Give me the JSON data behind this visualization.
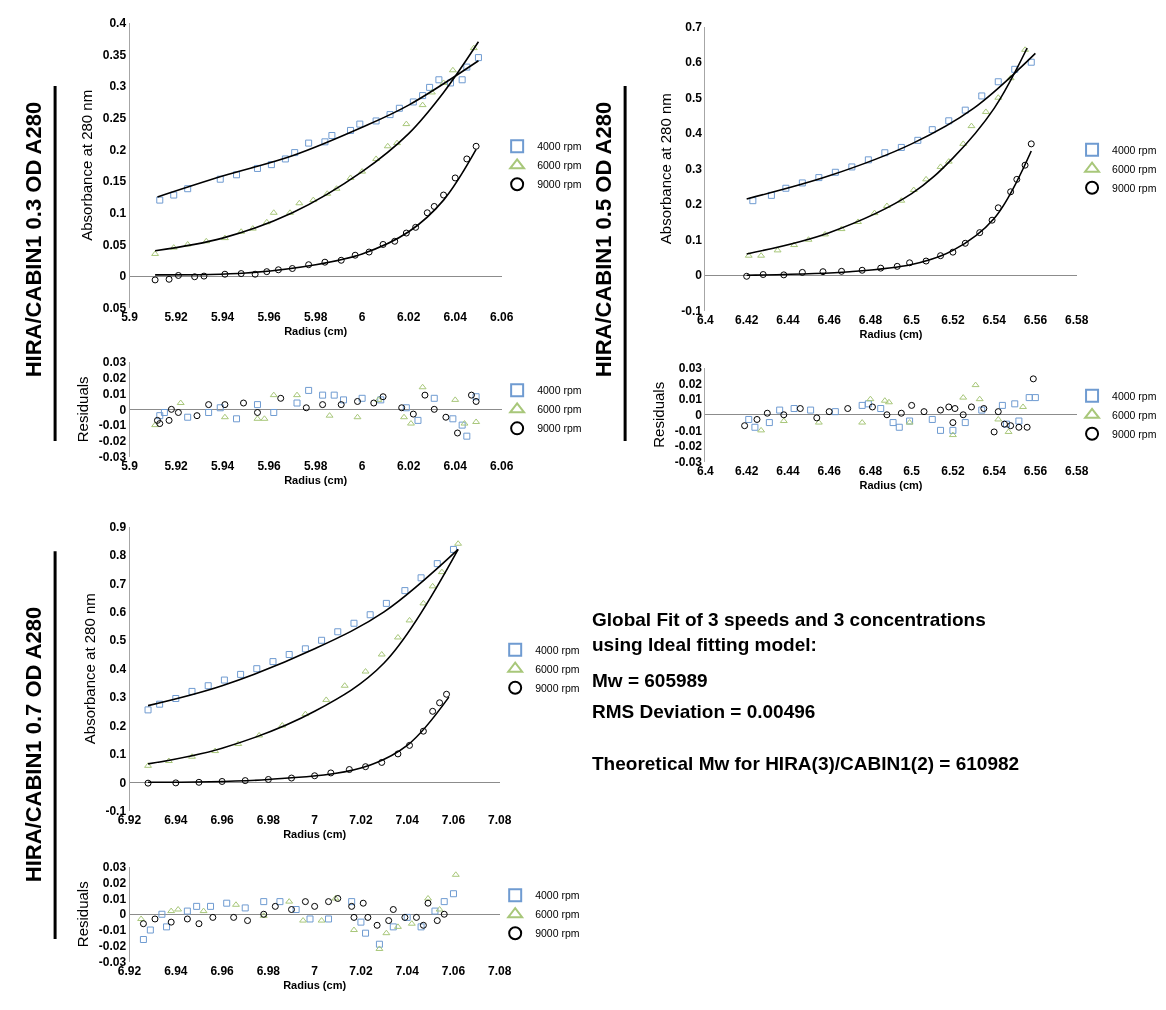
{
  "chart_data": [
    {
      "type": "scatter",
      "title": "HIRA/CABIN1 0.3 OD A280",
      "xlabel": "Radius (cm)",
      "ylabel": "Absorbance at 280 nm",
      "legend": "right",
      "xlim": [
        5.9,
        6.06
      ],
      "xticks": [
        5.9,
        5.92,
        5.94,
        5.96,
        5.98,
        6,
        6.02,
        6.04,
        6.06
      ],
      "ylim": [
        -0.05,
        0.4
      ],
      "yticks": [
        {
          "value": -0.05,
          "label": "0.05"
        },
        0,
        0.05,
        0.1,
        0.15,
        0.2,
        0.25,
        0.3,
        0.35,
        0.4
      ],
      "series": [
        {
          "name": "4000 rpm",
          "color": "#6f9bd1",
          "marker": "square",
          "x": [
            5.913,
            5.919,
            5.925,
            5.939,
            5.946,
            5.955,
            5.961,
            5.967,
            5.971,
            5.977,
            5.984,
            5.987,
            5.995,
            5.999,
            6.006,
            6.012,
            6.016,
            6.022,
            6.026,
            6.029,
            6.033,
            6.038,
            6.043,
            6.045,
            6.05
          ],
          "values": [
            0.12,
            0.128,
            0.138,
            0.153,
            0.16,
            0.17,
            0.176,
            0.185,
            0.195,
            0.21,
            0.212,
            0.222,
            0.23,
            0.24,
            0.245,
            0.255,
            0.265,
            0.275,
            0.285,
            0.298,
            0.31,
            0.305,
            0.31,
            0.33,
            0.345
          ]
        },
        {
          "name": "6000 rpm",
          "color": "#a8c77a",
          "marker": "triangle",
          "x": [
            5.911,
            5.919,
            5.925,
            5.933,
            5.941,
            5.948,
            5.953,
            5.959,
            5.962,
            5.969,
            5.973,
            5.979,
            5.985,
            5.989,
            5.995,
            6.0,
            6.006,
            6.011,
            6.015,
            6.019,
            6.026,
            6.03,
            6.035,
            6.039,
            6.048
          ],
          "values": [
            0.035,
            0.045,
            0.05,
            0.055,
            0.06,
            0.07,
            0.075,
            0.085,
            0.1,
            0.1,
            0.115,
            0.12,
            0.13,
            0.138,
            0.155,
            0.165,
            0.185,
            0.205,
            0.21,
            0.24,
            0.27,
            0.29,
            0.305,
            0.325,
            0.36
          ]
        },
        {
          "name": "9000 rpm",
          "color": "#000000",
          "marker": "circle",
          "x": [
            5.911,
            5.917,
            5.921,
            5.928,
            5.932,
            5.941,
            5.948,
            5.954,
            5.959,
            5.964,
            5.97,
            5.977,
            5.984,
            5.991,
            5.997,
            6.003,
            6.009,
            6.014,
            6.019,
            6.023,
            6.028,
            6.031,
            6.035,
            6.04,
            6.045,
            6.049
          ],
          "values": [
            -0.006,
            -0.005,
            0.001,
            -0.001,
            0.0,
            0.003,
            0.004,
            0.003,
            0.007,
            0.01,
            0.012,
            0.018,
            0.022,
            0.025,
            0.033,
            0.038,
            0.05,
            0.055,
            0.068,
            0.077,
            0.1,
            0.11,
            0.128,
            0.155,
            0.185,
            0.205
          ]
        },
        {
          "type": "line",
          "color": "#000000",
          "x": [
            5.912,
            5.94,
            5.97,
            6.0,
            6.02,
            6.05
          ],
          "values": [
            0.125,
            0.158,
            0.19,
            0.235,
            0.27,
            0.34
          ]
        },
        {
          "type": "line",
          "color": "#000000",
          "x": [
            5.911,
            5.94,
            5.97,
            6.0,
            6.02,
            6.035,
            6.05
          ],
          "values": [
            0.04,
            0.06,
            0.1,
            0.165,
            0.225,
            0.29,
            0.37
          ]
        },
        {
          "type": "line",
          "color": "#000000",
          "x": [
            5.911,
            5.95,
            5.98,
            6.0,
            6.02,
            6.035,
            6.049
          ],
          "values": [
            0.002,
            0.005,
            0.018,
            0.035,
            0.07,
            0.12,
            0.2
          ]
        }
      ]
    },
    {
      "type": "scatter",
      "xlabel": "Radius (cm)",
      "ylabel": "Residuals",
      "legend": "right",
      "xlim": [
        5.9,
        6.06
      ],
      "xticks": [
        5.9,
        5.92,
        5.94,
        5.96,
        5.98,
        6,
        6.02,
        6.04,
        6.06
      ],
      "ylim": [
        -0.03,
        0.03
      ],
      "yticks": [
        -0.03,
        -0.02,
        -0.01,
        0,
        0.01,
        0.02,
        0.03
      ],
      "series": [
        {
          "name": "4000 rpm",
          "color": "#6f9bd1",
          "marker": "square",
          "x": [
            5.913,
            5.915,
            5.925,
            5.934,
            5.939,
            5.946,
            5.955,
            5.962,
            5.972,
            5.977,
            5.983,
            5.988,
            5.992,
            6.0,
            6.008,
            6.019,
            6.024,
            6.031,
            6.039,
            6.043,
            6.045,
            6.049
          ],
          "values": [
            -0.004,
            -0.002,
            -0.005,
            -0.002,
            0.001,
            -0.006,
            0.003,
            -0.002,
            0.004,
            0.012,
            0.009,
            0.009,
            0.006,
            0.007,
            0.006,
            0.001,
            -0.007,
            0.007,
            -0.006,
            -0.01,
            -0.017,
            0.008
          ]
        },
        {
          "name": "6000 rpm",
          "color": "#a8c77a",
          "marker": "triangle",
          "x": [
            5.911,
            5.922,
            5.941,
            5.955,
            5.958,
            5.962,
            5.972,
            5.986,
            5.998,
            6.007,
            6.018,
            6.021,
            6.026,
            6.04,
            6.044,
            6.049
          ],
          "values": [
            -0.01,
            0.004,
            -0.005,
            -0.006,
            -0.006,
            0.009,
            0.009,
            -0.004,
            -0.005,
            0.006,
            -0.005,
            -0.009,
            0.014,
            0.006,
            -0.009,
            -0.008
          ]
        },
        {
          "name": "9000 rpm",
          "color": "#000000",
          "marker": "circle",
          "x": [
            5.912,
            5.913,
            5.917,
            5.918,
            5.921,
            5.929,
            5.934,
            5.941,
            5.949,
            5.955,
            5.965,
            5.976,
            5.983,
            5.991,
            5.998,
            6.005,
            6.009,
            6.017,
            6.022,
            6.027,
            6.031,
            6.036,
            6.041,
            6.047,
            6.049
          ],
          "values": [
            -0.007,
            -0.009,
            -0.007,
            0.0,
            -0.002,
            -0.004,
            0.003,
            0.003,
            0.004,
            -0.002,
            0.007,
            0.001,
            0.003,
            0.003,
            0.005,
            0.004,
            0.008,
            0.001,
            -0.003,
            0.009,
            0.0,
            -0.005,
            -0.015,
            0.009,
            0.005
          ]
        }
      ]
    },
    {
      "type": "scatter",
      "title": "HIRA/CABIN1 0.5 OD A280",
      "xlabel": "Radius (cm)",
      "ylabel": "Absorbance at 280 nm",
      "legend": "right",
      "xlim": [
        6.4,
        6.58
      ],
      "xticks": [
        6.4,
        6.42,
        6.44,
        6.46,
        6.48,
        6.5,
        6.52,
        6.54,
        6.56,
        6.58
      ],
      "ylim": [
        -0.1,
        0.7
      ],
      "yticks": [
        -0.1,
        0,
        0.1,
        0.2,
        0.3,
        0.4,
        0.5,
        0.6,
        0.7
      ],
      "series": [
        {
          "name": "4000 rpm",
          "color": "#6f9bd1",
          "marker": "square",
          "x": [
            6.423,
            6.432,
            6.439,
            6.447,
            6.455,
            6.463,
            6.471,
            6.479,
            6.487,
            6.495,
            6.503,
            6.51,
            6.518,
            6.526,
            6.534,
            6.542,
            6.55,
            6.558
          ],
          "values": [
            0.21,
            0.225,
            0.245,
            0.26,
            0.275,
            0.29,
            0.305,
            0.325,
            0.345,
            0.36,
            0.38,
            0.41,
            0.435,
            0.465,
            0.505,
            0.545,
            0.58,
            0.6
          ]
        },
        {
          "name": "6000 rpm",
          "color": "#a8c77a",
          "marker": "triangle",
          "x": [
            6.421,
            6.427,
            6.435,
            6.443,
            6.45,
            6.458,
            6.466,
            6.474,
            6.482,
            6.488,
            6.495,
            6.501,
            6.507,
            6.514,
            6.518,
            6.525,
            6.529,
            6.536,
            6.542,
            6.548,
            6.555
          ],
          "values": [
            0.055,
            0.055,
            0.07,
            0.085,
            0.1,
            0.115,
            0.13,
            0.15,
            0.175,
            0.195,
            0.21,
            0.24,
            0.27,
            0.305,
            0.32,
            0.37,
            0.42,
            0.46,
            0.5,
            0.555,
            0.635
          ]
        },
        {
          "name": "9000 rpm",
          "color": "#000000",
          "marker": "circle",
          "x": [
            6.42,
            6.428,
            6.438,
            6.447,
            6.457,
            6.466,
            6.476,
            6.485,
            6.493,
            6.499,
            6.507,
            6.514,
            6.52,
            6.526,
            6.533,
            6.539,
            6.542,
            6.548,
            6.551,
            6.555,
            6.558
          ],
          "values": [
            -0.003,
            0.002,
            0.001,
            0.008,
            0.01,
            0.011,
            0.014,
            0.02,
            0.025,
            0.035,
            0.04,
            0.055,
            0.065,
            0.09,
            0.12,
            0.155,
            0.19,
            0.235,
            0.27,
            0.31,
            0.37
          ]
        },
        {
          "type": "line",
          "color": "#000000",
          "x": [
            6.42,
            6.46,
            6.5,
            6.53,
            6.56
          ],
          "values": [
            0.215,
            0.28,
            0.37,
            0.47,
            0.625
          ]
        },
        {
          "type": "line",
          "color": "#000000",
          "x": [
            6.42,
            6.46,
            6.5,
            6.52,
            6.54,
            6.556
          ],
          "values": [
            0.06,
            0.12,
            0.23,
            0.33,
            0.47,
            0.64
          ]
        },
        {
          "type": "line",
          "color": "#000000",
          "x": [
            6.42,
            6.47,
            6.5,
            6.52,
            6.54,
            6.558
          ],
          "values": [
            0.0,
            0.01,
            0.03,
            0.07,
            0.16,
            0.35
          ]
        }
      ]
    },
    {
      "type": "scatter",
      "xlabel": "Radius (cm)",
      "ylabel": "Residuals",
      "legend": "right",
      "xlim": [
        6.4,
        6.58
      ],
      "xticks": [
        6.4,
        6.42,
        6.44,
        6.46,
        6.48,
        6.5,
        6.52,
        6.54,
        6.56,
        6.58
      ],
      "ylim": [
        -0.03,
        0.03
      ],
      "yticks": [
        -0.03,
        -0.02,
        -0.01,
        0,
        0.01,
        0.02,
        0.03
      ],
      "series": [
        {
          "name": "4000 rpm",
          "color": "#6f9bd1",
          "marker": "square",
          "x": [
            6.421,
            6.424,
            6.431,
            6.436,
            6.443,
            6.451,
            6.463,
            6.476,
            6.479,
            6.485,
            6.491,
            6.494,
            6.499,
            6.51,
            6.514,
            6.52,
            6.526,
            6.534,
            6.544,
            6.546,
            6.55,
            6.552,
            6.557,
            6.56
          ],
          "values": [
            -0.003,
            -0.008,
            -0.005,
            0.003,
            0.004,
            0.003,
            0.002,
            0.006,
            0.007,
            0.004,
            -0.005,
            -0.008,
            -0.004,
            -0.003,
            -0.01,
            -0.01,
            -0.005,
            0.003,
            0.006,
            -0.006,
            0.007,
            -0.004,
            0.011,
            0.011
          ]
        },
        {
          "name": "6000 rpm",
          "color": "#a8c77a",
          "marker": "triangle",
          "x": [
            6.427,
            6.438,
            6.455,
            6.476,
            6.48,
            6.487,
            6.489,
            6.499,
            6.52,
            6.525,
            6.531,
            6.533,
            6.542,
            6.547,
            6.554
          ],
          "values": [
            -0.01,
            -0.004,
            -0.005,
            -0.005,
            0.01,
            0.009,
            0.008,
            -0.005,
            -0.013,
            0.011,
            0.019,
            0.01,
            -0.003,
            -0.011,
            0.005
          ]
        },
        {
          "name": "9000 rpm",
          "color": "#000000",
          "marker": "circle",
          "x": [
            6.419,
            6.425,
            6.43,
            6.438,
            6.446,
            6.454,
            6.46,
            6.469,
            6.481,
            6.488,
            6.495,
            6.5,
            6.506,
            6.514,
            6.518,
            6.52,
            6.521,
            6.525,
            6.529,
            6.535,
            6.54,
            6.542,
            6.545,
            6.548,
            6.552,
            6.556,
            6.559
          ],
          "values": [
            -0.007,
            -0.003,
            0.001,
            0.0,
            0.004,
            -0.002,
            0.002,
            0.004,
            0.005,
            0.0,
            0.001,
            0.006,
            0.002,
            0.003,
            0.005,
            -0.005,
            0.004,
            0.0,
            0.005,
            0.004,
            -0.011,
            0.002,
            -0.006,
            -0.007,
            -0.008,
            -0.008,
            0.023
          ]
        }
      ]
    },
    {
      "type": "scatter",
      "title": "HIRA/CABIN1 0.7 OD A280",
      "xlabel": "Radius (cm)",
      "ylabel": "Absorbance at 280 nm",
      "legend": "right",
      "xlim": [
        6.92,
        7.08
      ],
      "xticks": [
        6.92,
        6.94,
        6.96,
        6.98,
        7,
        7.02,
        7.04,
        7.06,
        7.08
      ],
      "ylim": [
        -0.1,
        0.9
      ],
      "yticks": [
        -0.1,
        0,
        0.1,
        0.2,
        0.3,
        0.4,
        0.5,
        0.6,
        0.7,
        0.8,
        0.9
      ],
      "series": [
        {
          "name": "4000 rpm",
          "color": "#6f9bd1",
          "marker": "square",
          "x": [
            6.928,
            6.933,
            6.94,
            6.947,
            6.954,
            6.961,
            6.968,
            6.975,
            6.982,
            6.989,
            6.996,
            7.003,
            7.01,
            7.017,
            7.024,
            7.031,
            7.039,
            7.046,
            7.053,
            7.06
          ],
          "values": [
            0.255,
            0.275,
            0.295,
            0.32,
            0.34,
            0.36,
            0.38,
            0.4,
            0.425,
            0.45,
            0.47,
            0.5,
            0.53,
            0.56,
            0.59,
            0.63,
            0.675,
            0.72,
            0.77,
            0.82
          ]
        },
        {
          "name": "6000 rpm",
          "color": "#a8c77a",
          "marker": "triangle",
          "x": [
            6.928,
            6.937,
            6.947,
            6.957,
            6.967,
            6.976,
            6.986,
            6.996,
            7.005,
            7.013,
            7.022,
            7.029,
            7.036,
            7.041,
            7.047,
            7.051,
            7.055,
            7.062
          ],
          "values": [
            0.058,
            0.075,
            0.09,
            0.11,
            0.135,
            0.165,
            0.2,
            0.24,
            0.29,
            0.34,
            0.39,
            0.45,
            0.51,
            0.57,
            0.63,
            0.69,
            0.74,
            0.84
          ]
        },
        {
          "name": "9000 rpm",
          "color": "#000000",
          "marker": "circle",
          "x": [
            6.928,
            6.94,
            6.95,
            6.96,
            6.97,
            6.98,
            6.99,
            7.0,
            7.007,
            7.015,
            7.022,
            7.029,
            7.036,
            7.041,
            7.047,
            7.051,
            7.054,
            7.057
          ],
          "values": [
            -0.003,
            -0.002,
            0.0,
            0.003,
            0.006,
            0.01,
            0.015,
            0.023,
            0.033,
            0.045,
            0.055,
            0.07,
            0.1,
            0.13,
            0.18,
            0.25,
            0.28,
            0.31
          ]
        },
        {
          "type": "line",
          "color": "#000000",
          "x": [
            6.928,
            6.96,
            7.0,
            7.03,
            7.062
          ],
          "values": [
            0.27,
            0.34,
            0.47,
            0.6,
            0.82
          ]
        },
        {
          "type": "line",
          "color": "#000000",
          "x": [
            6.928,
            6.96,
            7.0,
            7.03,
            7.062
          ],
          "values": [
            0.065,
            0.12,
            0.25,
            0.42,
            0.82
          ]
        },
        {
          "type": "line",
          "color": "#000000",
          "x": [
            6.928,
            6.98,
            7.02,
            7.04,
            7.058
          ],
          "values": [
            0.0,
            0.01,
            0.05,
            0.13,
            0.3
          ]
        }
      ]
    },
    {
      "type": "scatter",
      "xlabel": "Radius (cm)",
      "ylabel": "Residuals",
      "legend": "right",
      "xlim": [
        6.92,
        7.08
      ],
      "xticks": [
        6.92,
        6.94,
        6.96,
        6.98,
        7,
        7.02,
        7.04,
        7.06,
        7.08
      ],
      "ylim": [
        -0.03,
        0.03
      ],
      "yticks": [
        -0.03,
        -0.02,
        -0.01,
        0,
        0.01,
        0.02,
        0.03
      ],
      "series": [
        {
          "name": "4000 rpm",
          "color": "#6f9bd1",
          "marker": "square",
          "x": [
            6.926,
            6.929,
            6.934,
            6.936,
            6.945,
            6.949,
            6.955,
            6.962,
            6.97,
            6.978,
            6.985,
            6.992,
            6.998,
            7.006,
            7.016,
            7.02,
            7.022,
            7.028,
            7.034,
            7.04,
            7.046,
            7.052,
            7.056,
            7.06
          ],
          "values": [
            -0.016,
            -0.01,
            0.0,
            -0.008,
            0.002,
            0.005,
            0.005,
            0.007,
            0.004,
            0.008,
            0.008,
            0.003,
            -0.003,
            -0.003,
            0.008,
            -0.005,
            -0.012,
            -0.019,
            -0.008,
            -0.002,
            -0.008,
            0.002,
            0.008,
            0.013
          ]
        },
        {
          "name": "6000 rpm",
          "color": "#a8c77a",
          "marker": "triangle",
          "x": [
            6.925,
            6.938,
            6.941,
            6.952,
            6.966,
            6.978,
            6.989,
            6.995,
            7.003,
            7.009,
            7.017,
            7.028,
            7.031,
            7.036,
            7.042,
            7.049,
            7.054,
            7.061
          ],
          "values": [
            -0.003,
            0.002,
            0.003,
            0.002,
            0.006,
            -0.001,
            0.008,
            -0.004,
            -0.004,
            0.01,
            -0.01,
            -0.022,
            -0.012,
            -0.008,
            -0.006,
            0.01,
            0.003,
            0.025
          ]
        },
        {
          "name": "9000 rpm",
          "color": "#000000",
          "marker": "circle",
          "x": [
            6.926,
            6.931,
            6.938,
            6.945,
            6.95,
            6.956,
            6.965,
            6.971,
            6.978,
            6.983,
            6.99,
            6.996,
            7.0,
            7.006,
            7.01,
            7.016,
            7.017,
            7.021,
            7.023,
            7.027,
            7.032,
            7.034,
            7.039,
            7.044,
            7.047,
            7.049,
            7.053,
            7.056
          ],
          "values": [
            -0.006,
            -0.003,
            -0.005,
            -0.003,
            -0.006,
            -0.002,
            -0.002,
            -0.004,
            0.0,
            0.005,
            0.003,
            0.008,
            0.005,
            0.008,
            0.01,
            0.005,
            -0.002,
            0.007,
            -0.002,
            -0.007,
            -0.004,
            0.003,
            -0.002,
            -0.002,
            -0.007,
            0.007,
            -0.004,
            0.0
          ]
        }
      ]
    },
    {
      "type": "other",
      "title": "Global Fit of 3 speeds and 3 concentrations using Ideal fitting model:",
      "annotations": [
        "Mw = 605989",
        "RMS Deviation = 0.00496",
        "Theoretical Mw for HIRA(3)/CABIN1(2) = 610982"
      ]
    }
  ]
}
